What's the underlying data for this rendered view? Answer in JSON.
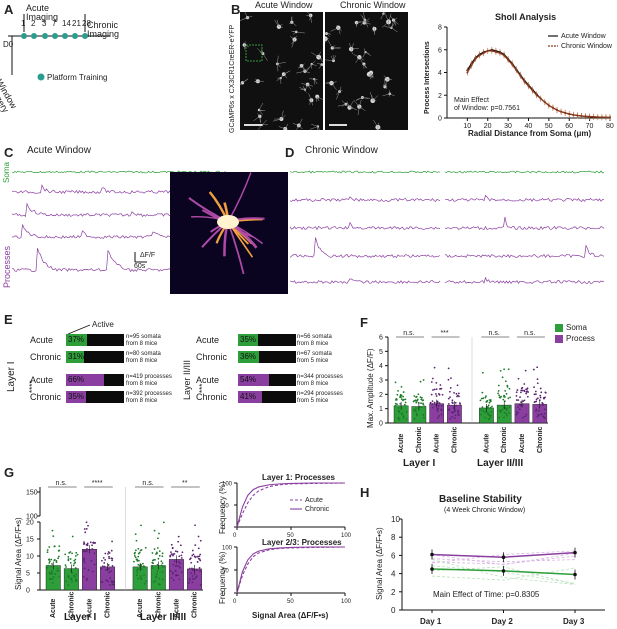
{
  "panels": {
    "A": {
      "letter": "A",
      "label_acute": "Acute\nImaging",
      "label_chronic": "Chronic\nImaging",
      "d0": "D0",
      "days": [
        "1",
        "2",
        "3",
        "7",
        "14",
        "21",
        "28"
      ],
      "window_surgery": "Window\nSurgery",
      "platform_training": "Platform Training",
      "accent": "#2a9d8f"
    },
    "B": {
      "letter": "B",
      "acute_window": "Acute Window",
      "chronic_window": "Chronic Window",
      "ylabel_side": "GCaMP6s x CX3CR1CreER-eYFP",
      "scale_label": "40 μm"
    },
    "sholl": {
      "title": "Sholl Analysis",
      "legend": [
        "Acute Window",
        "Chronic Window"
      ],
      "annotation": "Main Effect\nof Window: p=0.7561"
    },
    "C": {
      "letter": "C",
      "title": "Acute Window",
      "soma": "Soma",
      "processes": "Processes",
      "scale_df": "ΔF/F",
      "scale_t": "60s"
    },
    "D": {
      "letter": "D",
      "title": "Chronic Window"
    },
    "E": {
      "letter": "E",
      "active_label": "Active",
      "layer1": "Layer I",
      "layer23": "Layer II/III",
      "rows_left": [
        {
          "name": "Acute",
          "pct": "37%",
          "frac": 0.37,
          "color": "#2e9e3a",
          "note": "n=95 somata\nfrom 8 mice"
        },
        {
          "name": "Chronic",
          "pct": "31%",
          "frac": 0.31,
          "color": "#2e9e3a",
          "note": "n=80 somata\nfrom 8 mice"
        },
        {
          "name": "Acute",
          "pct": "66%",
          "frac": 0.66,
          "color": "#8a3fa0",
          "note": "n=419 processes\nfrom 8 mice"
        },
        {
          "name": "Chronic",
          "pct": "35%",
          "frac": 0.35,
          "color": "#8a3fa0",
          "note": "n=392 processes\nfrom 8 mice"
        }
      ],
      "rows_right": [
        {
          "name": "Acute",
          "pct": "35%",
          "frac": 0.35,
          "color": "#2e9e3a",
          "note": "n=56 somata\nfrom 8 mice"
        },
        {
          "name": "Chronic",
          "pct": "36%",
          "frac": 0.36,
          "color": "#2e9e3a",
          "note": "n=67 somata\nfrom 5 mice"
        },
        {
          "name": "Acute",
          "pct": "54%",
          "frac": 0.54,
          "color": "#8a3fa0",
          "note": "n=344 processes\nfrom 8 mice"
        },
        {
          "name": "Chronic",
          "pct": "41%",
          "frac": 0.41,
          "color": "#8a3fa0",
          "note": "n=294 processes\nfrom 5 mice"
        }
      ],
      "sig_left": "****",
      "sig_right": "***"
    },
    "F": {
      "letter": "F",
      "ylabel": "Max. Amplitude (ΔF/F)",
      "legend": [
        {
          "name": "Soma",
          "color": "#2e9e3a"
        },
        {
          "name": "Process",
          "color": "#8a3fa0"
        }
      ],
      "sig": [
        "n.s.",
        "***",
        "n.s.",
        "n.s."
      ],
      "layers": [
        "Layer I",
        "Layer II/III"
      ],
      "xticks": [
        "Acute",
        "Chronic",
        "Acute",
        "Chronic",
        "Acute",
        "Chronic",
        "Acute",
        "Chronic"
      ]
    },
    "G": {
      "letter": "G",
      "ylabel": "Signal Area (ΔF/F•s)",
      "sig": [
        "n.s.",
        "****",
        "n.s.",
        "**"
      ],
      "layers": [
        "Layer I",
        "Layer II/III"
      ],
      "xticks": [
        "Acute",
        "Chronic",
        "Acute",
        "Chronic",
        "Acute",
        "Chronic",
        "Acute",
        "Chronic"
      ],
      "cdf1_title": "Layer 1: Processes",
      "cdf2_title": "Layer 2/3: Processes",
      "cdf_ylabel": "Frequency (%)",
      "cdf_xlabel": "Signal Area (ΔF/F•s)",
      "cdf_legend": [
        "Acute",
        "Chronic"
      ]
    },
    "H": {
      "letter": "H",
      "title": "Baseline Stability",
      "subtitle": "(4 Week Chronic Window)",
      "ylabel": "Signal Area (ΔF/F•s)",
      "xticks": [
        "Day 1",
        "Day 2",
        "Day 3"
      ],
      "annotation": "Main Effect of Time: p=0.8305"
    }
  },
  "chart_data": [
    {
      "type": "line",
      "title": "Sholl Analysis",
      "xlabel": "Radial Distance from Soma (μm)",
      "ylabel": "Process Intersections",
      "xlim": [
        0,
        80
      ],
      "ylim": [
        0,
        8
      ],
      "xticks": [
        10,
        20,
        30,
        40,
        50,
        60,
        70,
        80
      ],
      "yticks": [
        0,
        2,
        4,
        6,
        8
      ],
      "series": [
        {
          "name": "Acute Window",
          "color": "#111111",
          "x": [
            10,
            12,
            14,
            16,
            18,
            20,
            22,
            24,
            26,
            28,
            30,
            32,
            34,
            36,
            38,
            40,
            42,
            44,
            46,
            48,
            50,
            52,
            54,
            56,
            58,
            60,
            62,
            64,
            66,
            68,
            70,
            72,
            74,
            76,
            78,
            80
          ],
          "y": [
            4.2,
            4.8,
            5.3,
            5.6,
            5.8,
            5.9,
            6.0,
            5.9,
            5.8,
            5.6,
            5.2,
            4.8,
            4.3,
            3.8,
            3.3,
            2.9,
            2.5,
            2.1,
            1.7,
            1.4,
            1.1,
            0.9,
            0.7,
            0.55,
            0.45,
            0.35,
            0.28,
            0.22,
            0.18,
            0.14,
            0.12,
            0.1,
            0.08,
            0.07,
            0.06,
            0.05
          ]
        },
        {
          "name": "Chronic Window",
          "color": "#8b3a1a",
          "x": [
            10,
            12,
            14,
            16,
            18,
            20,
            22,
            24,
            26,
            28,
            30,
            32,
            34,
            36,
            38,
            40,
            42,
            44,
            46,
            48,
            50,
            52,
            54,
            56,
            58,
            60,
            62,
            64,
            66,
            68,
            70,
            72,
            74,
            76,
            78,
            80
          ],
          "y": [
            4.0,
            4.6,
            5.2,
            5.5,
            5.7,
            5.9,
            5.9,
            5.8,
            5.7,
            5.5,
            5.1,
            4.7,
            4.2,
            3.7,
            3.2,
            2.8,
            2.4,
            2.0,
            1.7,
            1.4,
            1.1,
            0.9,
            0.7,
            0.55,
            0.45,
            0.35,
            0.28,
            0.22,
            0.18,
            0.14,
            0.12,
            0.1,
            0.08,
            0.07,
            0.06,
            0.05
          ]
        }
      ]
    },
    {
      "type": "bar",
      "title": "",
      "ylabel": "Max. Amplitude (ΔF/F)",
      "ylim": [
        0,
        6
      ],
      "yticks": [
        0,
        1,
        2,
        3,
        4,
        5,
        6
      ],
      "categories": [
        "Soma Acute L1",
        "Soma Chronic L1",
        "Process Acute L1",
        "Process Chronic L1",
        "Soma Acute L2/3",
        "Soma Chronic L2/3",
        "Process Acute L2/3",
        "Process Chronic L2/3"
      ],
      "values": [
        1.2,
        1.15,
        1.35,
        1.25,
        1.05,
        1.25,
        1.35,
        1.3
      ],
      "colors": [
        "#2e9e3a",
        "#2e9e3a",
        "#8a3fa0",
        "#8a3fa0",
        "#2e9e3a",
        "#2e9e3a",
        "#8a3fa0",
        "#8a3fa0"
      ]
    },
    {
      "type": "bar",
      "title": "",
      "ylabel": "Signal Area (ΔF/F•s)",
      "ylim": [
        0,
        150
      ],
      "yticks": [
        0,
        5,
        10,
        15,
        20,
        100,
        150
      ],
      "categories": [
        "Soma Acute L1",
        "Soma Chronic L1",
        "Process Acute L1",
        "Process Chronic L1",
        "Soma Acute L2/3",
        "Soma Chronic L2/3",
        "Process Acute L2/3",
        "Process Chronic L2/3"
      ],
      "values": [
        7.2,
        6.3,
        12.0,
        6.8,
        6.8,
        7.2,
        9.0,
        6.2
      ],
      "colors": [
        "#2e9e3a",
        "#2e9e3a",
        "#8a3fa0",
        "#8a3fa0",
        "#2e9e3a",
        "#2e9e3a",
        "#8a3fa0",
        "#8a3fa0"
      ]
    },
    {
      "type": "line",
      "title": "Layer 1: Processes",
      "xlabel": "",
      "ylabel": "Frequency (%)",
      "xlim": [
        0,
        100
      ],
      "ylim": [
        0,
        100
      ],
      "xticks": [
        0,
        50,
        100
      ],
      "yticks": [
        0,
        50,
        100
      ],
      "series": [
        {
          "name": "Acute",
          "color": "#8a3fa0",
          "dashed": true,
          "x": [
            0,
            5,
            10,
            15,
            20,
            30,
            40,
            50,
            70,
            100
          ],
          "y": [
            0,
            30,
            55,
            72,
            82,
            92,
            96,
            98,
            99,
            100
          ]
        },
        {
          "name": "Chronic",
          "color": "#8a3fa0",
          "dashed": false,
          "x": [
            0,
            5,
            10,
            15,
            20,
            30,
            40,
            50,
            70,
            100
          ],
          "y": [
            0,
            45,
            72,
            85,
            91,
            96,
            98,
            99,
            100,
            100
          ]
        }
      ]
    },
    {
      "type": "line",
      "title": "Layer 2/3: Processes",
      "xlabel": "Signal Area (ΔF/F•s)",
      "ylabel": "Frequency (%)",
      "xlim": [
        0,
        100
      ],
      "ylim": [
        0,
        100
      ],
      "xticks": [
        0,
        50,
        100
      ],
      "yticks": [
        0,
        50,
        100
      ],
      "series": [
        {
          "name": "Acute",
          "color": "#8a3fa0",
          "dashed": true,
          "x": [
            0,
            5,
            10,
            15,
            20,
            30,
            40,
            50,
            70,
            100
          ],
          "y": [
            0,
            38,
            63,
            79,
            87,
            94,
            97,
            98,
            99,
            100
          ]
        },
        {
          "name": "Chronic",
          "color": "#8a3fa0",
          "dashed": false,
          "x": [
            0,
            5,
            10,
            15,
            20,
            30,
            40,
            50,
            70,
            100
          ],
          "y": [
            0,
            46,
            72,
            85,
            91,
            96,
            98,
            99,
            100,
            100
          ]
        }
      ]
    },
    {
      "type": "line",
      "title": "Baseline Stability",
      "subtitle": "(4 Week Chronic Window)",
      "ylabel": "Signal Area (ΔF/F•s)",
      "categories": [
        "Day 1",
        "Day 2",
        "Day 3"
      ],
      "ylim": [
        0,
        10
      ],
      "yticks": [
        0,
        2,
        4,
        6,
        8,
        10
      ],
      "series": [
        {
          "name": "",
          "color": "#8a3fa0",
          "values": [
            6.1,
            5.8,
            6.3
          ]
        },
        {
          "name": "",
          "color": "#2e9e3a",
          "values": [
            4.5,
            4.3,
            3.9
          ]
        }
      ]
    }
  ]
}
